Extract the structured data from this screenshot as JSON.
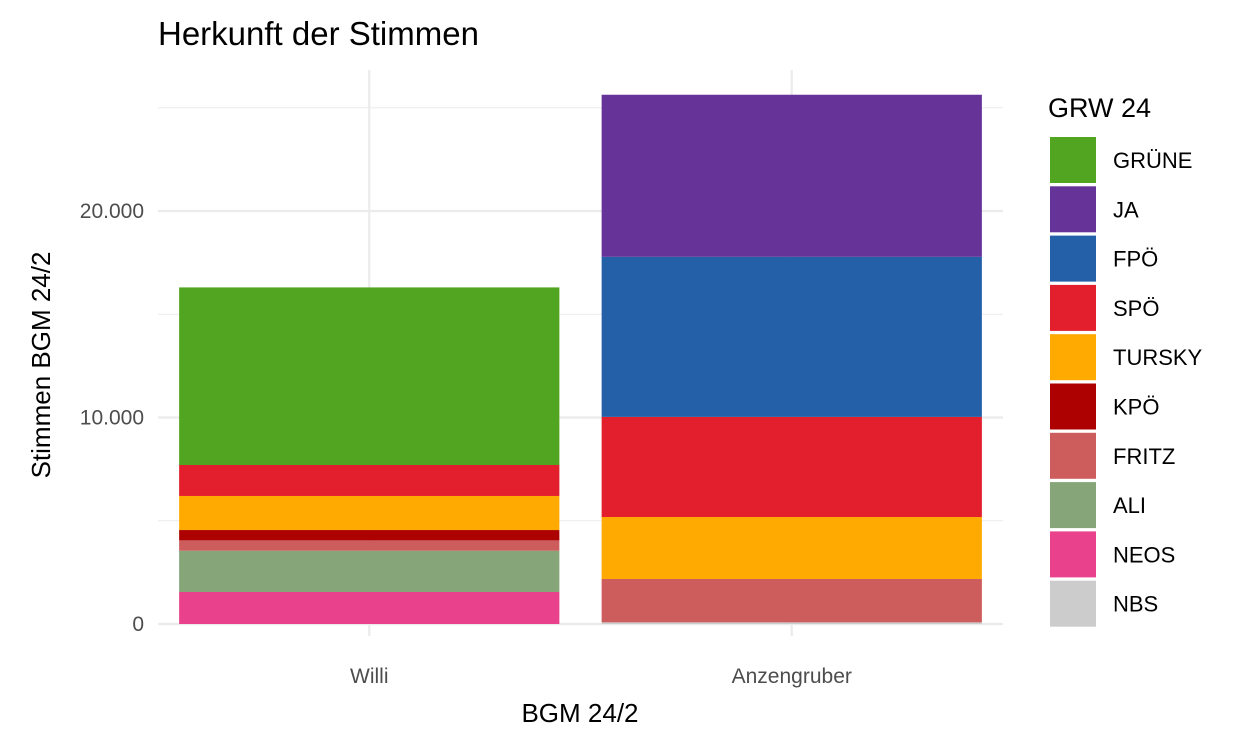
{
  "chart_data": {
    "type": "bar",
    "stacked": true,
    "title": "Herkunft der Stimmen",
    "xlabel": "BGM 24/2",
    "ylabel": "Stimmen BGM 24/2",
    "categories": [
      "Willi",
      "Anzengruber"
    ],
    "ylim": [
      -500,
      26800
    ],
    "yticks": [
      0,
      10000,
      20000
    ],
    "ytick_labels": [
      "0",
      "10.000",
      "20.000"
    ],
    "grid": true,
    "legend_title": "GRW 24",
    "legend_position": "right",
    "series": [
      {
        "name": "NBS",
        "color": "#cccccc",
        "values": [
          0,
          80
        ]
      },
      {
        "name": "NEOS",
        "color": "#e9418b",
        "values": [
          1550,
          0
        ]
      },
      {
        "name": "ALI",
        "color": "#86a67a",
        "values": [
          2000,
          0
        ]
      },
      {
        "name": "FRITZ",
        "color": "#cd5c5c",
        "values": [
          500,
          2100
        ]
      },
      {
        "name": "KPÖ",
        "color": "#ad0000",
        "values": [
          500,
          0
        ]
      },
      {
        "name": "TURSKY",
        "color": "#ffaa00",
        "values": [
          1650,
          3000
        ]
      },
      {
        "name": "SPÖ",
        "color": "#e31f2e",
        "values": [
          1500,
          4850
        ]
      },
      {
        "name": "FPÖ",
        "color": "#2360a7",
        "values": [
          0,
          7750
        ]
      },
      {
        "name": "JA",
        "color": "#663399",
        "values": [
          0,
          7850
        ]
      },
      {
        "name": "GRÜNE",
        "color": "#52a521",
        "values": [
          8600,
          0
        ]
      }
    ],
    "legend_order": [
      "GRÜNE",
      "JA",
      "FPÖ",
      "SPÖ",
      "TURSKY",
      "KPÖ",
      "FRITZ",
      "ALI",
      "NEOS",
      "NBS"
    ]
  }
}
